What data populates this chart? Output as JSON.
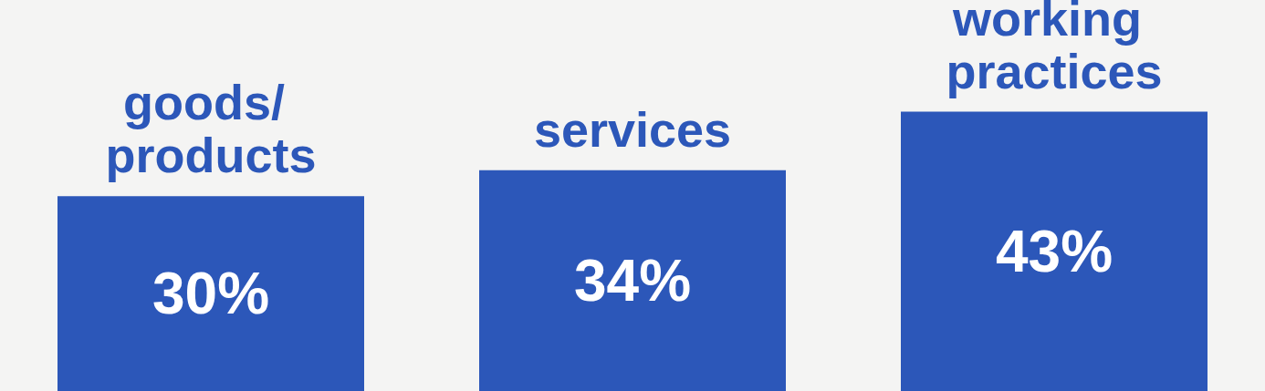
{
  "chart_data": {
    "type": "bar",
    "tick_labels": false,
    "categories": [
      "goods/ products",
      "services",
      "working practices"
    ],
    "values": [
      30,
      34,
      43
    ],
    "value_labels": [
      "30%",
      "34%",
      "43%"
    ],
    "color": "#2c57b9"
  }
}
